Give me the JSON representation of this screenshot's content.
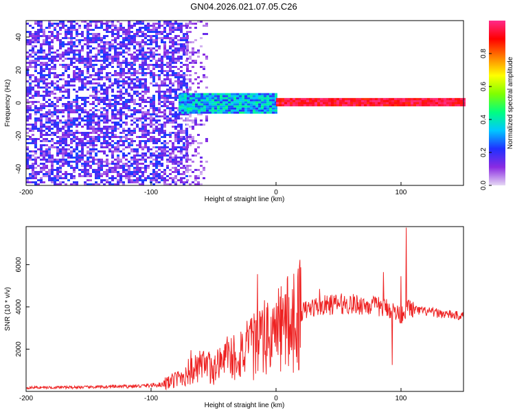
{
  "title": "GN04.2026.021.07.05.C26",
  "chart_data": [
    {
      "type": "heatmap",
      "id": "spectrogram",
      "xlabel": "Height of straight line (km)",
      "ylabel": "Frequency (Hz)",
      "xlim": [
        -200,
        150
      ],
      "ylim": [
        -50,
        50
      ],
      "xticks": [
        -200,
        -100,
        0,
        100
      ],
      "yticks": [
        -40,
        -20,
        0,
        20,
        40
      ],
      "regions": [
        {
          "name": "noise",
          "x_range": [
            -200,
            -72
          ],
          "y_range": [
            -50,
            50
          ],
          "amplitude": [
            0.05,
            0.25
          ]
        },
        {
          "name": "noise-fade",
          "x_range": [
            -72,
            -55
          ],
          "y_range": [
            -50,
            50
          ],
          "amplitude": [
            0.02,
            0.15
          ]
        },
        {
          "name": "weak-signal",
          "x_range": [
            -78,
            0
          ],
          "y_range": [
            -6,
            6
          ],
          "amplitude": [
            0.2,
            0.45
          ]
        },
        {
          "name": "strong-signal",
          "x_range": [
            0,
            150
          ],
          "y_range": [
            -2,
            3
          ],
          "amplitude": [
            0.85,
            1.0
          ]
        }
      ],
      "colorbar": {
        "label": "Normalized spectral amplitude",
        "range": [
          0,
          1
        ],
        "ticks": [
          "0.0",
          "0.2",
          "0.4",
          "0.6",
          "0.8"
        ],
        "tick_values": [
          0,
          0.2,
          0.4,
          0.6,
          0.8
        ],
        "colormap": [
          "#e6d8f4",
          "#8a2be2",
          "#2030ff",
          "#00c8ff",
          "#00ff80",
          "#80ff00",
          "#ffff00",
          "#ff8000",
          "#ff0000",
          "#ff2a8a"
        ]
      }
    },
    {
      "type": "line",
      "id": "snr",
      "xlabel": "Height of straight line (km)",
      "ylabel": "SNR (10 * v/v)",
      "xlim": [
        -200,
        150
      ],
      "ylim": [
        0,
        7800
      ],
      "xticks": [
        -200,
        -100,
        0,
        100
      ],
      "yticks": [
        2000,
        4000,
        6000
      ],
      "color": "#ee2222",
      "series": [
        {
          "name": "SNR",
          "x": [
            -200,
            -150,
            -110,
            -90,
            -80,
            -70,
            -60,
            -50,
            -40,
            -30,
            -20,
            -10,
            0,
            10,
            20,
            30,
            50,
            70,
            90,
            100,
            105,
            110,
            130,
            150
          ],
          "values": [
            180,
            200,
            250,
            330,
            560,
            900,
            1100,
            1100,
            1450,
            1800,
            2000,
            2450,
            2800,
            3300,
            3750,
            4000,
            4150,
            4100,
            3950,
            3600,
            4000,
            3850,
            3700,
            3550
          ],
          "spikes": [
            {
              "x": -68,
              "y": 1950
            },
            {
              "x": -39,
              "y": 2600
            },
            {
              "x": -15,
              "y": 5550
            },
            {
              "x": 35,
              "y": 4850
            },
            {
              "x": 86,
              "y": 5650
            },
            {
              "x": 93,
              "y": 1250
            },
            {
              "x": 100,
              "y": 5450
            },
            {
              "x": 104,
              "y": 7750
            }
          ]
        }
      ]
    }
  ]
}
